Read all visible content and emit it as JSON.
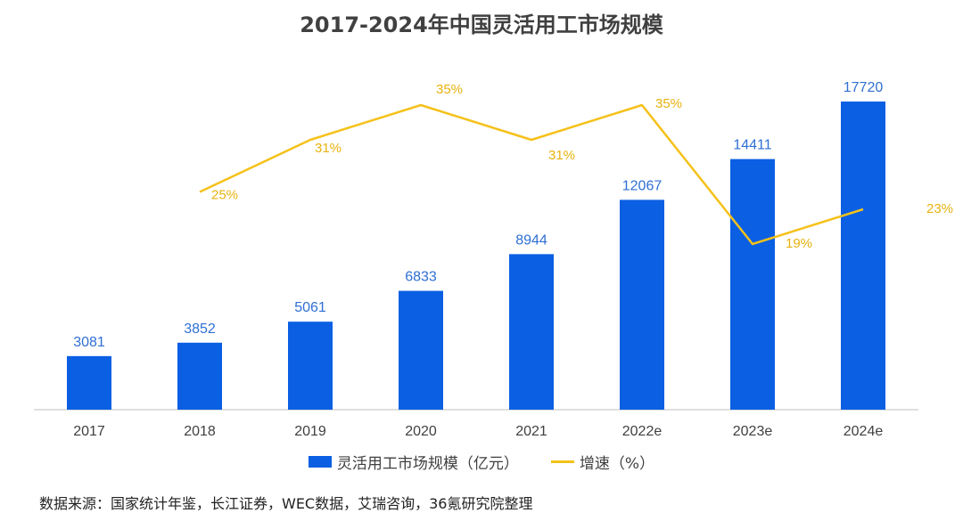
{
  "title": "2017-2024年中国灵活用工市场规模",
  "legend": {
    "bar_label": "灵活用工市场规模（亿元）",
    "line_label": "增速（%）"
  },
  "source": "数据来源：国家统计年鉴，长江证券，WEC数据，艾瑞咨询，36氪研究院整理",
  "colors": {
    "bar": "#0a5fe3",
    "line": "#f5c11a",
    "bar_label": "#2f6fd3",
    "rate_label": "#e8b20f",
    "axis": "#bfbfbf"
  },
  "chart_data": {
    "type": "bar",
    "categories": [
      "2017",
      "2018",
      "2019",
      "2020",
      "2021",
      "2022e",
      "2023e",
      "2024e"
    ],
    "series": [
      {
        "name": "灵活用工市场规模（亿元）",
        "type": "bar",
        "values": [
          3081,
          3852,
          5061,
          6833,
          8944,
          12067,
          14411,
          17720
        ]
      },
      {
        "name": "增速（%）",
        "type": "line",
        "values": [
          null,
          25,
          31,
          35,
          31,
          35,
          19,
          23
        ],
        "labels": [
          "",
          "25%",
          "31%",
          "35%",
          "31%",
          "35%",
          "19%",
          "23%"
        ]
      }
    ],
    "ylim": [
      0,
      17720
    ],
    "y2lim": [
      0,
      35
    ]
  }
}
